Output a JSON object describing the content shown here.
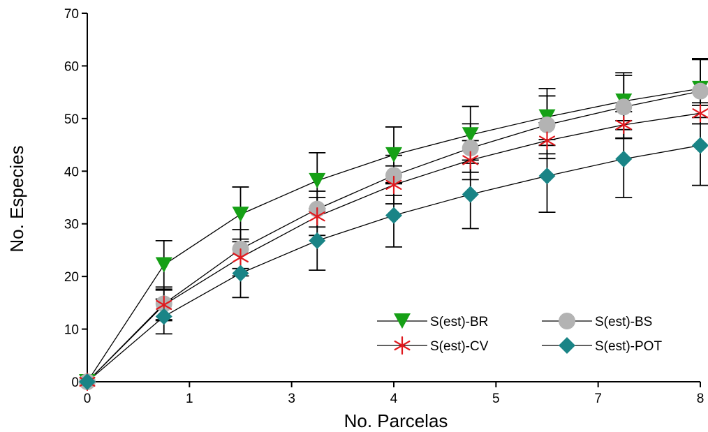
{
  "chart_data": {
    "type": "line",
    "xlabel": "No. Parcelas",
    "ylabel": "No. Especies",
    "xlim": [
      0,
      9
    ],
    "ylim": [
      0,
      70
    ],
    "x_ticks": [
      {
        "value": 0,
        "label": "0"
      },
      {
        "value": 1.5,
        "label": "1"
      },
      {
        "value": 3,
        "label": "3"
      },
      {
        "value": 4.5,
        "label": "4"
      },
      {
        "value": 6,
        "label": "5"
      },
      {
        "value": 7.5,
        "label": "7"
      },
      {
        "value": 9,
        "label": "8"
      }
    ],
    "y_ticks": [
      0,
      10,
      20,
      30,
      40,
      50,
      60,
      70
    ],
    "x": [
      0,
      1.125,
      2.25,
      3.375,
      4.5,
      5.625,
      6.75,
      7.875,
      9
    ],
    "legend_position": "bottom-right",
    "grid": false,
    "series": [
      {
        "name": "S(est)-BR",
        "marker": "triangle-down",
        "color": "#16a016",
        "values": [
          0,
          22.2,
          31.8,
          38.2,
          43.1,
          46.9,
          50.3,
          53.3,
          55.7
        ],
        "error": [
          0,
          4.6,
          5.2,
          5.3,
          5.3,
          5.4,
          5.4,
          5.4,
          5.5
        ]
      },
      {
        "name": "S(est)-BS",
        "marker": "circle",
        "color": "#b3b3b3",
        "values": [
          0,
          14.8,
          25.2,
          32.8,
          39.2,
          44.4,
          48.8,
          52.2,
          55.2
        ],
        "error": [
          0,
          3.2,
          3.7,
          3.4,
          3.8,
          4.6,
          5.5,
          6.0,
          6.2
        ]
      },
      {
        "name": "S(est)-CV",
        "marker": "asterisk",
        "color": "#e0191e",
        "values": [
          0,
          14.6,
          23.6,
          31.4,
          37.4,
          42.1,
          45.8,
          48.8,
          51.0
        ],
        "error": [
          0,
          2.8,
          3.5,
          3.6,
          3.6,
          3.7,
          3.4,
          2.5,
          2.0
        ]
      },
      {
        "name": "S(est)-POT",
        "marker": "diamond",
        "color": "#1a8486",
        "values": [
          0,
          12.4,
          20.6,
          26.8,
          31.6,
          35.6,
          39.1,
          42.3,
          44.9
        ],
        "error": [
          0,
          3.3,
          4.6,
          5.6,
          6.0,
          6.5,
          6.9,
          7.3,
          7.6
        ]
      }
    ]
  }
}
